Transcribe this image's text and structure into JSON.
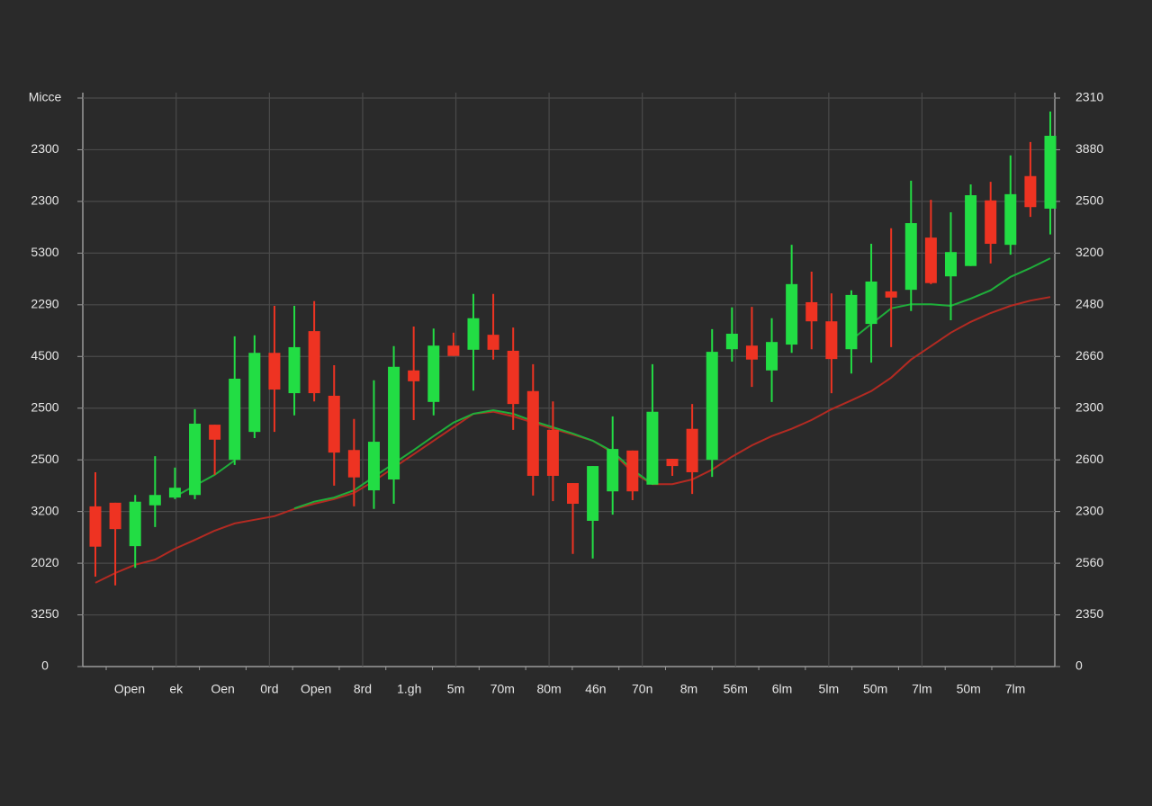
{
  "chart_data": {
    "type": "candlestick",
    "ylim": [
      0,
      11
    ],
    "yticks": [
      0,
      {
        "value": 1,
        "label": "3250"
      },
      {
        "value": 2,
        "label": "2020"
      },
      {
        "value": 3,
        "label": "3200"
      },
      {
        "value": 4,
        "label": "2500"
      },
      {
        "value": 5,
        "label": "2500"
      },
      {
        "value": 6,
        "label": "4500"
      },
      {
        "value": 7,
        "label": "2290"
      },
      {
        "value": 8,
        "label": "5300"
      },
      {
        "value": 9,
        "label": "2300"
      },
      {
        "value": 10,
        "label": "2300"
      },
      {
        "value": 11,
        "label": "Micce"
      }
    ],
    "y2lim": [
      0,
      11
    ],
    "y2ticks": [
      0,
      {
        "value": 1,
        "label": "2350"
      },
      {
        "value": 2,
        "label": "2560"
      },
      {
        "value": 3,
        "label": "2300"
      },
      {
        "value": 4,
        "label": "2600"
      },
      {
        "value": 5,
        "label": "2300"
      },
      {
        "value": 6,
        "label": "2660"
      },
      {
        "value": 7,
        "label": "2480"
      },
      {
        "value": 8,
        "label": "3200"
      },
      {
        "value": 9,
        "label": "2500"
      },
      {
        "value": 10,
        "label": "3880"
      },
      {
        "value": 11,
        "label": "2310"
      }
    ],
    "xtick_labels": [
      "Open",
      "ek",
      "Oen",
      "0rd",
      "Open",
      "8rd",
      "1.gh",
      "5m",
      "70m",
      "80m",
      "46n",
      "70n",
      "8m",
      "56m",
      "6lm",
      "5lm",
      "50m",
      "7lm",
      "50m",
      "7lm"
    ],
    "grid": true,
    "up_color": "#22dd44",
    "down_color": "#ee3322",
    "candles": {
      "open": [
        3.1,
        3.17,
        2.33,
        3.12,
        3.27,
        3.32,
        4.68,
        4.0,
        4.54,
        6.07,
        5.29,
        6.49,
        5.24,
        4.19,
        3.41,
        3.62,
        5.73,
        5.12,
        6.21,
        6.13,
        6.42,
        6.11,
        5.33,
        4.58,
        3.55,
        2.82,
        3.39,
        4.18,
        3.52,
        4.02,
        4.6,
        4.0,
        6.14,
        6.21,
        5.73,
        6.23,
        7.05,
        6.68,
        6.14,
        6.63,
        7.26,
        7.29,
        8.3,
        7.55,
        7.75,
        9.02,
        8.16,
        9.49,
        8.86
      ],
      "close": [
        2.32,
        2.66,
        3.19,
        3.32,
        3.46,
        4.7,
        4.39,
        5.57,
        6.07,
        5.36,
        6.18,
        5.29,
        4.14,
        3.66,
        4.35,
        5.8,
        5.52,
        6.21,
        6.01,
        6.74,
        6.13,
        5.08,
        3.69,
        3.69,
        3.15,
        3.88,
        4.21,
        3.39,
        4.93,
        3.88,
        3.76,
        6.09,
        6.44,
        5.94,
        6.28,
        7.4,
        6.68,
        5.95,
        7.19,
        7.45,
        7.14,
        8.58,
        7.42,
        8.02,
        9.12,
        8.18,
        9.14,
        8.89,
        10.27
      ],
      "high": [
        3.76,
        3.17,
        3.32,
        4.07,
        3.85,
        4.98,
        4.68,
        6.39,
        6.41,
        6.98,
        6.98,
        7.07,
        5.83,
        4.79,
        5.54,
        6.2,
        6.58,
        6.54,
        6.46,
        7.21,
        7.21,
        6.56,
        5.85,
        5.13,
        3.55,
        3.88,
        4.84,
        4.18,
        5.85,
        4.02,
        5.08,
        6.53,
        6.95,
        6.96,
        6.74,
        8.16,
        7.64,
        7.22,
        7.28,
        8.18,
        8.48,
        9.4,
        9.03,
        8.79,
        9.33,
        9.38,
        9.89,
        10.15,
        10.74
      ],
      "low": [
        1.74,
        1.57,
        1.91,
        2.7,
        3.24,
        3.24,
        3.71,
        3.9,
        4.42,
        4.54,
        4.86,
        5.13,
        3.5,
        3.1,
        3.05,
        3.15,
        4.77,
        4.86,
        6.01,
        5.34,
        5.94,
        4.58,
        3.31,
        3.2,
        2.18,
        2.09,
        2.94,
        3.22,
        3.52,
        3.69,
        3.34,
        3.67,
        5.9,
        5.41,
        5.12,
        6.07,
        6.14,
        5.29,
        5.67,
        5.88,
        6.18,
        6.88,
        7.4,
        6.7,
        7.75,
        7.8,
        7.97,
        8.7,
        8.36
      ]
    },
    "series": [
      {
        "color": "#b32a22",
        "values": [
          1.62,
          1.81,
          1.97,
          2.07,
          2.28,
          2.45,
          2.63,
          2.77,
          2.84,
          2.91,
          3.05,
          3.15,
          3.24,
          3.36,
          3.59,
          3.85,
          4.11,
          4.37,
          4.63,
          4.89,
          4.93,
          4.84,
          4.72,
          4.6,
          4.49,
          4.37,
          4.14,
          3.76,
          3.53,
          3.53,
          3.62,
          3.81,
          4.06,
          4.28,
          4.46,
          4.6,
          4.77,
          4.98,
          5.15,
          5.33,
          5.59,
          5.94,
          6.2,
          6.46,
          6.67,
          6.84,
          6.98,
          7.08,
          7.15
        ]
      },
      {
        "color": "#1fae3a",
        "values": [
          null,
          null,
          null,
          null,
          3.29,
          3.5,
          3.71,
          3.99,
          null,
          null,
          3.06,
          3.19,
          3.27,
          3.41,
          3.67,
          3.93,
          4.19,
          4.46,
          4.72,
          4.89,
          4.96,
          4.89,
          4.75,
          4.63,
          4.51,
          4.37,
          4.16,
          3.81,
          3.53,
          null,
          null,
          null,
          null,
          null,
          null,
          null,
          null,
          null,
          6.32,
          6.63,
          6.93,
          7.01,
          7.01,
          6.98,
          7.12,
          7.28,
          7.54,
          7.71,
          7.9
        ]
      }
    ]
  }
}
